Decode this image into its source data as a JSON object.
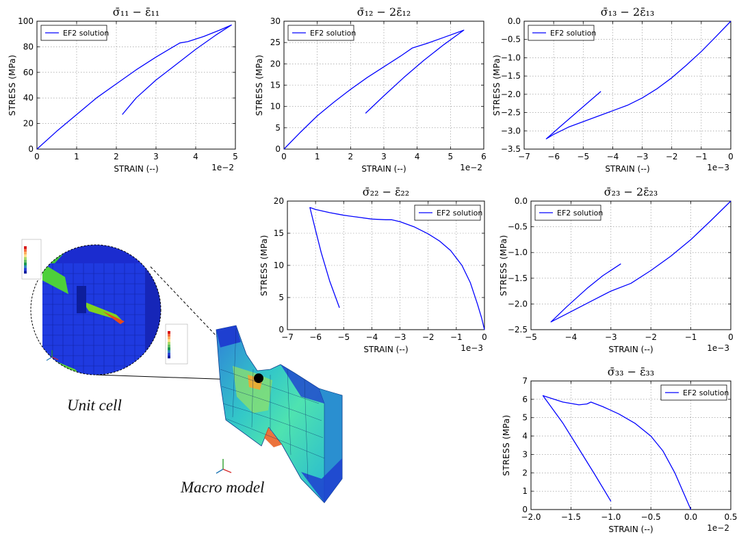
{
  "chart_data": [
    {
      "type": "line",
      "title": "σ̄₁₁ − ε̄₁₁",
      "xlabel": "STRAIN (--)",
      "ylabel": "STRESS (MPa)",
      "x_offset_text": "1e−2",
      "xlim": [
        0,
        5
      ],
      "ylim": [
        0,
        100
      ],
      "xticks": [
        0,
        1,
        2,
        3,
        4,
        5
      ],
      "yticks": [
        0,
        20,
        40,
        60,
        80,
        100
      ],
      "xticklabels": [
        "0",
        "1",
        "2",
        "3",
        "4",
        "5"
      ],
      "yticklabels": [
        "0",
        "20",
        "40",
        "60",
        "80",
        "100"
      ],
      "grid": true,
      "legend_position": "upper-left",
      "series": [
        {
          "name": "EF2 solution",
          "color": "#0000ff",
          "x": [
            0,
            0.5,
            1.0,
            1.5,
            2.0,
            2.5,
            3.0,
            3.6,
            3.8,
            4.2,
            4.6,
            4.9,
            4.5,
            4.0,
            3.5,
            3.0,
            2.5,
            2.15
          ],
          "y": [
            0,
            14,
            27,
            40,
            51,
            62,
            72,
            83,
            84,
            88,
            93,
            97,
            89,
            78,
            66,
            54,
            40,
            27
          ]
        }
      ]
    },
    {
      "type": "line",
      "title": "σ̄₁₂ − 2ε̄₁₂",
      "xlabel": "STRAIN (--)",
      "ylabel": "STRESS (MPa)",
      "x_offset_text": "1e−2",
      "xlim": [
        0,
        6
      ],
      "ylim": [
        0,
        30
      ],
      "xticks": [
        0,
        1,
        2,
        3,
        4,
        5,
        6
      ],
      "yticks": [
        0,
        5,
        10,
        15,
        20,
        25,
        30
      ],
      "xticklabels": [
        "0",
        "1",
        "2",
        "3",
        "4",
        "5",
        "6"
      ],
      "yticklabels": [
        "0",
        "5",
        "10",
        "15",
        "20",
        "25",
        "30"
      ],
      "grid": true,
      "legend_position": "upper-left",
      "series": [
        {
          "name": "EF2 solution",
          "color": "#0000ff",
          "x": [
            0,
            0.5,
            1.0,
            1.5,
            2.0,
            2.5,
            3.0,
            3.5,
            3.85,
            4.3,
            4.8,
            5.4,
            4.8,
            4.2,
            3.6,
            3.0,
            2.45
          ],
          "y": [
            0,
            4,
            7.8,
            11,
            14,
            16.8,
            19.3,
            21.8,
            23.7,
            24.8,
            26.2,
            27.9,
            24.5,
            20.8,
            16.8,
            12.5,
            8.4
          ]
        }
      ]
    },
    {
      "type": "line",
      "title": "σ̄₁₃ − 2ε̄₁₃",
      "xlabel": "STRAIN (--)",
      "ylabel": "STRESS (MPa)",
      "x_offset_text": "1e−3",
      "xlim": [
        -7,
        0
      ],
      "ylim": [
        -3.5,
        0
      ],
      "xticks": [
        -7,
        -6,
        -5,
        -4,
        -3,
        -2,
        -1,
        0
      ],
      "yticks": [
        -3.5,
        -3,
        -2.5,
        -2,
        -1.5,
        -1,
        -0.5,
        0
      ],
      "xticklabels": [
        "−7",
        "−6",
        "−5",
        "−4",
        "−3",
        "−2",
        "−1",
        "0"
      ],
      "yticklabels": [
        "−3.5",
        "−3.0",
        "−2.5",
        "−2.0",
        "−1.5",
        "−1.0",
        "−0.5",
        "0.0"
      ],
      "grid": true,
      "legend_position": "upper-left",
      "series": [
        {
          "name": "EF2 solution",
          "color": "#0000ff",
          "x": [
            0,
            -0.5,
            -1.0,
            -1.5,
            -2.0,
            -2.5,
            -3.0,
            -3.5,
            -3.9,
            -4.5,
            -5.0,
            -5.5,
            -6.0,
            -6.25,
            -5.8,
            -5.3,
            -4.8,
            -4.4
          ],
          "y": [
            0,
            -0.42,
            -0.83,
            -1.2,
            -1.55,
            -1.85,
            -2.1,
            -2.3,
            -2.42,
            -2.6,
            -2.75,
            -2.9,
            -3.1,
            -3.22,
            -2.9,
            -2.55,
            -2.2,
            -1.92
          ]
        }
      ]
    },
    {
      "type": "line",
      "title": "σ̄₂₂ − ε̄₂₂",
      "xlabel": "STRAIN (--)",
      "ylabel": "STRESS (MPa)",
      "x_offset_text": "1e−3",
      "xlim": [
        -7,
        0
      ],
      "ylim": [
        0,
        20
      ],
      "xticks": [
        -7,
        -6,
        -5,
        -4,
        -3,
        -2,
        -1,
        0
      ],
      "yticks": [
        0,
        5,
        10,
        15,
        20
      ],
      "xticklabels": [
        "−7",
        "−6",
        "−5",
        "−4",
        "−3",
        "−2",
        "−1",
        "0"
      ],
      "yticklabels": [
        "0",
        "5",
        "10",
        "15",
        "20"
      ],
      "grid": true,
      "legend_position": "upper-right",
      "series": [
        {
          "name": "EF2 solution",
          "color": "#0000ff",
          "x": [
            0,
            -0.1,
            -0.25,
            -0.5,
            -0.8,
            -1.2,
            -1.6,
            -2.0,
            -2.5,
            -3.0,
            -3.3,
            -3.5,
            -4.0,
            -4.5,
            -5.0,
            -5.5,
            -6.0,
            -6.2,
            -6.0,
            -5.8,
            -5.5,
            -5.15
          ],
          "y": [
            0,
            1.8,
            4.0,
            7.3,
            10.0,
            12.3,
            13.8,
            14.9,
            16.0,
            16.8,
            17.1,
            17.1,
            17.2,
            17.5,
            17.8,
            18.2,
            18.7,
            19.0,
            15.5,
            12.0,
            7.6,
            3.4
          ]
        }
      ]
    },
    {
      "type": "line",
      "title": "σ̄₂₃ − 2ε̄₂₃",
      "xlabel": "STRAIN (--)",
      "ylabel": "STRESS (MPa)",
      "x_offset_text": "1e−3",
      "xlim": [
        -5,
        0
      ],
      "ylim": [
        -2.5,
        0
      ],
      "xticks": [
        -5,
        -4,
        -3,
        -2,
        -1,
        0
      ],
      "yticks": [
        -2.5,
        -2,
        -1.5,
        -1,
        -0.5,
        0
      ],
      "xticklabels": [
        "−5",
        "−4",
        "−3",
        "−2",
        "−1",
        "0"
      ],
      "yticklabels": [
        "−2.5",
        "−2.0",
        "−1.5",
        "−1.0",
        "−0.5",
        "0.0"
      ],
      "grid": true,
      "legend_position": "upper-left",
      "series": [
        {
          "name": "EF2 solution",
          "color": "#0000ff",
          "x": [
            0,
            -0.5,
            -1.0,
            -1.5,
            -2.0,
            -2.5,
            -3.0,
            -3.5,
            -4.0,
            -4.5,
            -4.1,
            -3.6,
            -3.2,
            -2.75
          ],
          "y": [
            0,
            -0.38,
            -0.75,
            -1.07,
            -1.35,
            -1.6,
            -1.75,
            -1.95,
            -2.15,
            -2.35,
            -2.05,
            -1.7,
            -1.45,
            -1.22
          ]
        }
      ]
    },
    {
      "type": "line",
      "title": "σ̄₃₃ − ε̄₃₃",
      "xlabel": "STRAIN (--)",
      "ylabel": "STRESS (MPa)",
      "x_offset_text": "1e−2",
      "xlim": [
        -2,
        0.5
      ],
      "ylim": [
        0,
        7
      ],
      "xticks": [
        -2,
        -1.5,
        -1,
        -0.5,
        0,
        0.5
      ],
      "yticks": [
        0,
        1,
        2,
        3,
        4,
        5,
        6,
        7
      ],
      "xticklabels": [
        "−2.0",
        "−1.5",
        "−1.0",
        "−0.5",
        "0.0",
        "0.5"
      ],
      "yticklabels": [
        "0",
        "1",
        "2",
        "3",
        "4",
        "5",
        "6",
        "7"
      ],
      "grid": true,
      "legend_position": "upper-right",
      "series": [
        {
          "name": "EF2 solution",
          "color": "#0000ff",
          "x": [
            0,
            -0.1,
            -0.2,
            -0.35,
            -0.5,
            -0.7,
            -0.9,
            -1.1,
            -1.25,
            -1.3,
            -1.4,
            -1.6,
            -1.85,
            -1.6,
            -1.4,
            -1.2,
            -1.0
          ],
          "y": [
            0,
            1.0,
            2.0,
            3.2,
            4.0,
            4.7,
            5.2,
            5.6,
            5.85,
            5.75,
            5.7,
            5.85,
            6.2,
            4.7,
            3.3,
            1.9,
            0.45
          ]
        }
      ]
    }
  ],
  "captions": {
    "unit_cell": "Unit cell",
    "macro_model": "Macro model"
  }
}
